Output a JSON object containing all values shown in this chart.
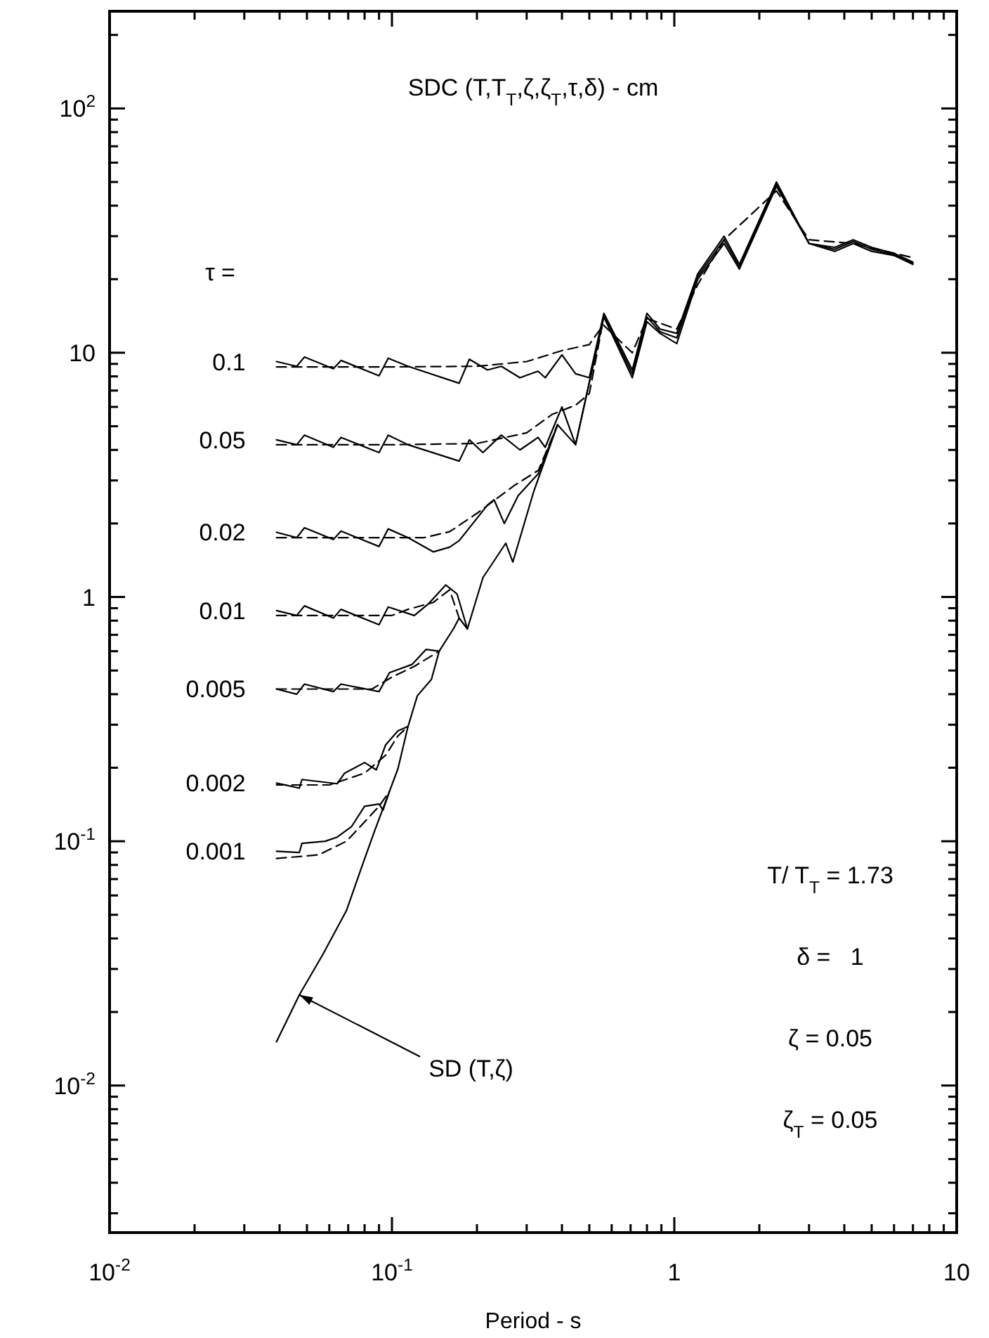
{
  "chart_data": {
    "type": "line",
    "title": "SDC (T,T$_{T}$,ζ,ζ$_{T}$,τ,δ) - cm",
    "xlabel": "Period - s",
    "log": "xy",
    "xlim": [
      0.01,
      10
    ],
    "ylim": [
      0.0025,
      250
    ],
    "xticks": [
      {
        "value": 0.01,
        "label": "10$^{-2}$"
      },
      {
        "value": 0.02,
        "label": null
      },
      {
        "value": 0.03,
        "label": null
      },
      {
        "value": 0.04,
        "label": null
      },
      {
        "value": 0.05,
        "label": null
      },
      {
        "value": 0.06,
        "label": null
      },
      {
        "value": 0.07,
        "label": null
      },
      {
        "value": 0.08,
        "label": null
      },
      {
        "value": 0.09,
        "label": null
      },
      {
        "value": 0.1,
        "label": "10$^{-1}$"
      },
      {
        "value": 0.2,
        "label": null
      },
      {
        "value": 0.3,
        "label": null
      },
      {
        "value": 0.4,
        "label": null
      },
      {
        "value": 0.5,
        "label": null
      },
      {
        "value": 0.6,
        "label": null
      },
      {
        "value": 0.7,
        "label": null
      },
      {
        "value": 0.8,
        "label": null
      },
      {
        "value": 0.9,
        "label": null
      },
      1,
      {
        "value": 2,
        "label": null
      },
      {
        "value": 3,
        "label": null
      },
      {
        "value": 4,
        "label": null
      },
      {
        "value": 5,
        "label": null
      },
      {
        "value": 6,
        "label": null
      },
      {
        "value": 7,
        "label": null
      },
      {
        "value": 8,
        "label": null
      },
      {
        "value": 9,
        "label": null
      },
      10
    ],
    "yticks": [
      {
        "value": 0.003,
        "label": null
      },
      {
        "value": 0.004,
        "label": null
      },
      {
        "value": 0.005,
        "label": null
      },
      {
        "value": 0.006,
        "label": null
      },
      {
        "value": 0.007,
        "label": null
      },
      {
        "value": 0.008,
        "label": null
      },
      {
        "value": 0.009,
        "label": null
      },
      {
        "value": 0.01,
        "label": "10$^{-2}$"
      },
      {
        "value": 0.02,
        "label": null
      },
      {
        "value": 0.03,
        "label": null
      },
      {
        "value": 0.04,
        "label": null
      },
      {
        "value": 0.05,
        "label": null
      },
      {
        "value": 0.06,
        "label": null
      },
      {
        "value": 0.07,
        "label": null
      },
      {
        "value": 0.08,
        "label": null
      },
      {
        "value": 0.09,
        "label": null
      },
      {
        "value": 0.1,
        "label": "10$^{-1}$"
      },
      {
        "value": 0.2,
        "label": null
      },
      {
        "value": 0.3,
        "label": null
      },
      {
        "value": 0.4,
        "label": null
      },
      {
        "value": 0.5,
        "label": null
      },
      {
        "value": 0.6,
        "label": null
      },
      {
        "value": 0.7,
        "label": null
      },
      {
        "value": 0.8,
        "label": null
      },
      {
        "value": 0.9,
        "label": null
      },
      1,
      {
        "value": 2,
        "label": null
      },
      {
        "value": 3,
        "label": null
      },
      {
        "value": 4,
        "label": null
      },
      {
        "value": 5,
        "label": null
      },
      {
        "value": 6,
        "label": null
      },
      {
        "value": 7,
        "label": null
      },
      {
        "value": 8,
        "label": null
      },
      {
        "value": 9,
        "label": null
      },
      10,
      {
        "value": 20,
        "label": null
      },
      {
        "value": 30,
        "label": null
      },
      {
        "value": 40,
        "label": null
      },
      {
        "value": 50,
        "label": null
      },
      {
        "value": 60,
        "label": null
      },
      {
        "value": 70,
        "label": null
      },
      {
        "value": 80,
        "label": null
      },
      {
        "value": 90,
        "label": null
      },
      {
        "value": 100,
        "label": "10$^{2}$"
      },
      {
        "value": 200,
        "label": null
      }
    ],
    "series": [
      {
        "name": "SD (T,ζ)",
        "color": "#000000",
        "line_style": "solid",
        "x": [
          0.039,
          0.047,
          0.057,
          0.069,
          0.078,
          0.087,
          0.098,
          0.105,
          0.114,
          0.123,
          0.138,
          0.147,
          0.165,
          0.173,
          0.185,
          0.21,
          0.253,
          0.268,
          0.318,
          0.386,
          0.447,
          0.563,
          0.71,
          0.8,
          0.89,
          1.02,
          1.21,
          1.5,
          1.7,
          2.3,
          3,
          3.7,
          4.3,
          5,
          6,
          7
        ],
        "values": [
          0.0151,
          0.0235,
          0.0345,
          0.052,
          0.078,
          0.111,
          0.16,
          0.198,
          0.295,
          0.394,
          0.46,
          0.6,
          0.74,
          0.82,
          0.74,
          1.2,
          1.66,
          1.39,
          2.71,
          5.07,
          4.2,
          14,
          7.9,
          13.4,
          12,
          10.9,
          20,
          28,
          22,
          48,
          28,
          26,
          28,
          26,
          25,
          23
        ]
      },
      {
        "name": "0.1",
        "color": "#000000",
        "line_style": "solid",
        "x": [
          0.039,
          0.046,
          0.049,
          0.062,
          0.066,
          0.09,
          0.097,
          0.114,
          0.173,
          0.188,
          0.218,
          0.244,
          0.284,
          0.329,
          0.349,
          0.4,
          0.447,
          0.5,
          0.563,
          0.71,
          0.8,
          0.89,
          1.02,
          1.21,
          1.5,
          1.7,
          2.3,
          3,
          3.7,
          4.3,
          5,
          6,
          7
        ],
        "values": [
          9.2,
          8.8,
          9.6,
          8.6,
          9.3,
          8.05,
          9.5,
          8.8,
          7.5,
          9.4,
          8.5,
          8.8,
          7.9,
          8.4,
          7.9,
          9.8,
          8.2,
          7.9,
          14.5,
          8.5,
          14.5,
          12.5,
          12,
          21,
          30,
          23,
          50,
          28,
          27,
          29,
          27,
          25.5,
          23.5
        ]
      },
      {
        "color": "#000000",
        "line_style": "dashed",
        "x": [
          0.039,
          0.1,
          0.2,
          0.3,
          0.4,
          0.5,
          0.56,
          0.71,
          0.8,
          1.02,
          1.21,
          1.5,
          2.3,
          3,
          4.3,
          7
        ],
        "values": [
          8.75,
          8.75,
          8.8,
          9.2,
          10.2,
          10.8,
          13,
          10,
          13.8,
          12.5,
          19,
          29,
          46,
          29,
          28,
          24.5
        ]
      },
      {
        "name": "0.05",
        "color": "#000000",
        "line_style": "solid",
        "x": [
          0.039,
          0.046,
          0.049,
          0.062,
          0.066,
          0.09,
          0.097,
          0.114,
          0.173,
          0.188,
          0.21,
          0.244,
          0.284,
          0.329,
          0.349,
          0.4,
          0.447,
          0.563,
          0.71,
          0.8,
          0.89,
          1.02,
          1.21,
          1.5,
          1.7,
          2.3,
          3,
          3.7,
          4.3,
          5,
          6,
          7
        ],
        "values": [
          4.4,
          4.2,
          4.6,
          4.1,
          4.5,
          3.9,
          4.6,
          4.2,
          3.6,
          4.4,
          3.9,
          4.6,
          4.0,
          4.5,
          4.1,
          6.0,
          4.2,
          14.2,
          8.2,
          14,
          12.2,
          11.5,
          20.5,
          29,
          22.5,
          49,
          28,
          26.5,
          28.5,
          26.5,
          25.2,
          23.2
        ]
      },
      {
        "color": "#000000",
        "line_style": "dashed",
        "x": [
          0.039,
          0.1,
          0.2,
          0.3,
          0.37,
          0.447,
          0.5,
          0.563
        ],
        "values": [
          4.2,
          4.2,
          4.25,
          4.7,
          5.6,
          6.1,
          6.8,
          14
        ]
      },
      {
        "name": "0.02",
        "color": "#000000",
        "line_style": "solid",
        "x": [
          0.039,
          0.046,
          0.049,
          0.062,
          0.066,
          0.09,
          0.097,
          0.114,
          0.14,
          0.16,
          0.173,
          0.218,
          0.23,
          0.25,
          0.28,
          0.33,
          0.386
        ],
        "values": [
          1.84,
          1.75,
          1.92,
          1.72,
          1.86,
          1.61,
          1.9,
          1.75,
          1.53,
          1.6,
          1.7,
          2.38,
          2.5,
          2.0,
          2.6,
          3.2,
          5.07
        ]
      },
      {
        "color": "#000000",
        "line_style": "dashed",
        "x": [
          0.039,
          0.13,
          0.16,
          0.2,
          0.27,
          0.33,
          0.386
        ],
        "values": [
          1.75,
          1.75,
          1.85,
          2.2,
          2.85,
          3.3,
          5.07
        ]
      },
      {
        "name": "0.01",
        "color": "#000000",
        "line_style": "solid",
        "x": [
          0.039,
          0.046,
          0.049,
          0.062,
          0.066,
          0.09,
          0.097,
          0.12,
          0.135,
          0.155,
          0.17,
          0.185
        ],
        "values": [
          0.88,
          0.84,
          0.92,
          0.82,
          0.89,
          0.77,
          0.91,
          0.84,
          0.94,
          1.12,
          1.03,
          0.74
        ]
      },
      {
        "color": "#000000",
        "line_style": "dashed",
        "x": [
          0.039,
          0.1,
          0.114,
          0.14,
          0.16,
          0.173
        ],
        "values": [
          0.84,
          0.84,
          0.89,
          0.95,
          1.07,
          0.82
        ]
      },
      {
        "name": "0.005",
        "color": "#000000",
        "line_style": "solid",
        "x": [
          0.039,
          0.046,
          0.049,
          0.062,
          0.066,
          0.09,
          0.098,
          0.118,
          0.132,
          0.147
        ],
        "values": [
          0.42,
          0.4,
          0.44,
          0.41,
          0.44,
          0.41,
          0.49,
          0.53,
          0.61,
          0.6
        ]
      },
      {
        "color": "#000000",
        "line_style": "dashed",
        "x": [
          0.039,
          0.085,
          0.1,
          0.12,
          0.147
        ],
        "values": [
          0.42,
          0.42,
          0.47,
          0.52,
          0.6
        ]
      },
      {
        "name": "0.002",
        "color": "#000000",
        "line_style": "solid",
        "x": [
          0.039,
          0.047,
          0.048,
          0.064,
          0.068,
          0.08,
          0.088,
          0.095,
          0.105,
          0.114
        ],
        "values": [
          0.173,
          0.165,
          0.179,
          0.172,
          0.19,
          0.21,
          0.196,
          0.248,
          0.283,
          0.295
        ]
      },
      {
        "color": "#000000",
        "line_style": "dashed",
        "x": [
          0.039,
          0.06,
          0.08,
          0.095,
          0.105,
          0.114
        ],
        "values": [
          0.17,
          0.17,
          0.19,
          0.225,
          0.27,
          0.295
        ]
      },
      {
        "name": "0.001",
        "color": "#000000",
        "line_style": "solid",
        "x": [
          0.039,
          0.047,
          0.048,
          0.058,
          0.064,
          0.072,
          0.08,
          0.09,
          0.093,
          0.098
        ],
        "values": [
          0.091,
          0.09,
          0.098,
          0.1,
          0.104,
          0.115,
          0.139,
          0.142,
          0.134,
          0.16
        ]
      },
      {
        "color": "#000000",
        "line_style": "dashed",
        "x": [
          0.039,
          0.055,
          0.069,
          0.08,
          0.09,
          0.098
        ],
        "values": [
          0.085,
          0.088,
          0.1,
          0.12,
          0.139,
          0.16
        ]
      }
    ],
    "annotations": [
      "τ =",
      "T/ T$_{T}$ = 1.73",
      "δ =   1",
      "ζ = 0.05",
      "ζ$_{T}$ = 0.05"
    ]
  }
}
